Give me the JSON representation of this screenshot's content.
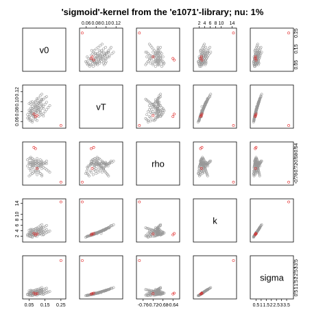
{
  "chart_data": {
    "type": "scatter",
    "subtype": "scatterplot-matrix",
    "title": "'sigmoid'-kernel from the 'e1071'-library; nu: 1%",
    "variables": [
      {
        "name": "v0",
        "range": [
          0.02,
          0.27
        ],
        "ticks": [
          0.05,
          0.15,
          0.25
        ],
        "tick_labels": [
          "0.05",
          "0.15",
          "0.25"
        ]
      },
      {
        "name": "vT",
        "range": [
          0.05,
          0.13
        ],
        "ticks": [
          0.06,
          0.08,
          0.1,
          0.12
        ],
        "tick_labels": [
          "0.06",
          "0.08",
          "0.10",
          "0.12"
        ]
      },
      {
        "name": "rho",
        "range": [
          -0.78,
          -0.62
        ],
        "ticks": [
          -0.76,
          -0.72,
          -0.68,
          -0.64
        ],
        "tick_labels": [
          "-0.76",
          "-0.72",
          "-0.68",
          "-0.64"
        ]
      },
      {
        "name": "k",
        "range": [
          0.5,
          15.0
        ],
        "ticks": [
          2,
          4,
          6,
          8,
          10,
          14
        ],
        "tick_labels": [
          "2",
          "4",
          "6",
          "8",
          "10",
          "14"
        ]
      },
      {
        "name": "sigma",
        "range": [
          0.1,
          4.0
        ],
        "ticks": [
          0.5,
          1.0,
          1.5,
          2.0,
          2.5,
          3.0,
          3.5
        ],
        "tick_labels": [
          "0.5",
          "1",
          "1.5",
          "2",
          "2.5",
          "3",
          "3.5"
        ]
      }
    ],
    "axes_placement": {
      "top": [
        "vT",
        "k"
      ],
      "bottom": [
        "v0",
        "rho",
        "sigma"
      ],
      "left": [
        "vT",
        "k"
      ],
      "right": [
        "v0",
        "rho",
        "sigma"
      ]
    },
    "series": [
      {
        "name": "",
        "color": "#999999",
        "marker": "open-circle",
        "points": [
          [
            0.05,
            0.07,
            -0.7,
            2.8,
            0.4
          ],
          [
            0.06,
            0.08,
            -0.705,
            3.1,
            0.45
          ],
          [
            0.07,
            0.075,
            -0.695,
            2.6,
            0.38
          ],
          [
            0.08,
            0.085,
            -0.71,
            3.4,
            0.5
          ],
          [
            0.09,
            0.09,
            -0.7,
            3.0,
            0.55
          ],
          [
            0.1,
            0.082,
            -0.69,
            2.9,
            0.48
          ],
          [
            0.11,
            0.088,
            -0.715,
            3.6,
            0.6
          ],
          [
            0.12,
            0.078,
            -0.705,
            3.2,
            0.52
          ],
          [
            0.13,
            0.092,
            -0.695,
            3.8,
            0.65
          ],
          [
            0.14,
            0.086,
            -0.7,
            3.5,
            0.58
          ],
          [
            0.06,
            0.095,
            -0.72,
            4.2,
            0.7
          ],
          [
            0.07,
            0.1,
            -0.71,
            4.5,
            0.75
          ],
          [
            0.08,
            0.072,
            -0.69,
            2.4,
            0.35
          ],
          [
            0.09,
            0.068,
            -0.73,
            2.2,
            0.33
          ],
          [
            0.1,
            0.076,
            -0.725,
            2.7,
            0.42
          ],
          [
            0.11,
            0.084,
            -0.735,
            3.3,
            0.5
          ],
          [
            0.12,
            0.08,
            -0.74,
            3.1,
            0.46
          ],
          [
            0.13,
            0.074,
            -0.745,
            2.5,
            0.4
          ],
          [
            0.05,
            0.066,
            -0.75,
            2.1,
            0.3
          ],
          [
            0.06,
            0.064,
            -0.745,
            2.0,
            0.28
          ],
          [
            0.07,
            0.062,
            -0.74,
            1.9,
            0.27
          ],
          [
            0.08,
            0.07,
            -0.735,
            2.3,
            0.34
          ],
          [
            0.09,
            0.078,
            -0.73,
            2.8,
            0.44
          ],
          [
            0.1,
            0.09,
            -0.72,
            3.7,
            0.62
          ],
          [
            0.11,
            0.096,
            -0.715,
            4.1,
            0.68
          ],
          [
            0.12,
            0.098,
            -0.71,
            4.4,
            0.72
          ],
          [
            0.13,
            0.102,
            -0.705,
            4.9,
            0.8
          ],
          [
            0.14,
            0.105,
            -0.7,
            5.2,
            0.85
          ],
          [
            0.15,
            0.108,
            -0.695,
            5.5,
            0.92
          ],
          [
            0.16,
            0.11,
            -0.69,
            5.9,
            0.98
          ],
          [
            0.04,
            0.074,
            -0.685,
            2.6,
            0.4
          ],
          [
            0.05,
            0.078,
            -0.68,
            2.9,
            0.45
          ],
          [
            0.06,
            0.082,
            -0.675,
            3.2,
            0.5
          ],
          [
            0.07,
            0.086,
            -0.68,
            3.5,
            0.56
          ],
          [
            0.08,
            0.088,
            -0.685,
            3.7,
            0.6
          ],
          [
            0.09,
            0.092,
            -0.69,
            4.0,
            0.66
          ],
          [
            0.1,
            0.094,
            -0.695,
            4.3,
            0.7
          ],
          [
            0.11,
            0.098,
            -0.7,
            4.6,
            0.76
          ],
          [
            0.12,
            0.1,
            -0.705,
            4.8,
            0.8
          ],
          [
            0.13,
            0.104,
            -0.71,
            5.1,
            0.86
          ],
          [
            0.14,
            0.076,
            -0.715,
            2.7,
            0.42
          ],
          [
            0.15,
            0.08,
            -0.72,
            3.0,
            0.48
          ],
          [
            0.16,
            0.084,
            -0.725,
            3.3,
            0.54
          ],
          [
            0.17,
            0.088,
            -0.73,
            3.6,
            0.6
          ],
          [
            0.18,
            0.092,
            -0.735,
            3.9,
            0.66
          ],
          [
            0.05,
            0.096,
            -0.7,
            4.2,
            0.72
          ],
          [
            0.06,
            0.099,
            -0.695,
            4.5,
            0.78
          ],
          [
            0.07,
            0.072,
            -0.7,
            2.5,
            0.38
          ],
          [
            0.08,
            0.068,
            -0.705,
            2.3,
            0.35
          ],
          [
            0.09,
            0.064,
            -0.71,
            2.1,
            0.32
          ],
          [
            0.1,
            0.062,
            -0.715,
            2.0,
            0.3
          ],
          [
            0.11,
            0.07,
            -0.69,
            2.6,
            0.41
          ],
          [
            0.12,
            0.073,
            -0.685,
            2.8,
            0.44
          ],
          [
            0.06,
            0.077,
            -0.68,
            3.0,
            0.47
          ],
          [
            0.07,
            0.081,
            -0.69,
            3.3,
            0.52
          ],
          [
            0.08,
            0.085,
            -0.7,
            3.6,
            0.57
          ],
          [
            0.09,
            0.089,
            -0.71,
            3.9,
            0.63
          ],
          [
            0.1,
            0.093,
            -0.72,
            4.2,
            0.68
          ],
          [
            0.11,
            0.097,
            -0.73,
            4.5,
            0.74
          ],
          [
            0.12,
            0.101,
            -0.74,
            4.8,
            0.79
          ],
          [
            0.13,
            0.105,
            -0.75,
            5.1,
            0.85
          ],
          [
            0.05,
            0.083,
            -0.695,
            3.4,
            0.55
          ],
          [
            0.06,
            0.087,
            -0.705,
            3.7,
            0.61
          ],
          [
            0.07,
            0.091,
            -0.715,
            4.0,
            0.67
          ],
          [
            0.08,
            0.095,
            -0.725,
            4.3,
            0.73
          ],
          [
            0.09,
            0.099,
            -0.735,
            4.6,
            0.79
          ],
          [
            0.1,
            0.103,
            -0.745,
            4.9,
            0.84
          ],
          [
            0.11,
            0.107,
            -0.7,
            5.3,
            0.9
          ],
          [
            0.12,
            0.112,
            -0.695,
            5.8,
            0.97
          ],
          [
            0.13,
            0.115,
            -0.69,
            6.2,
            1.05
          ],
          [
            0.14,
            0.071,
            -0.7,
            2.5,
            0.39
          ],
          [
            0.04,
            0.067,
            -0.71,
            2.2,
            0.34
          ],
          [
            0.05,
            0.063,
            -0.72,
            2.0,
            0.31
          ],
          [
            0.06,
            0.061,
            -0.73,
            1.8,
            0.28
          ],
          [
            0.07,
            0.059,
            -0.74,
            1.6,
            0.25
          ],
          [
            0.08,
            0.074,
            -0.7,
            2.7,
            0.43
          ],
          [
            0.09,
            0.079,
            -0.69,
            3.0,
            0.49
          ],
          [
            0.1,
            0.083,
            -0.68,
            3.3,
            0.53
          ],
          [
            0.11,
            0.087,
            -0.7,
            3.6,
            0.59
          ],
          [
            0.12,
            0.091,
            -0.71,
            3.9,
            0.65
          ],
          [
            0.13,
            0.095,
            -0.72,
            4.2,
            0.71
          ],
          [
            0.06,
            0.079,
            -0.7,
            3.0,
            0.47
          ],
          [
            0.07,
            0.082,
            -0.705,
            3.2,
            0.51
          ],
          [
            0.08,
            0.076,
            -0.695,
            2.8,
            0.44
          ],
          [
            0.09,
            0.081,
            -0.7,
            3.1,
            0.49
          ],
          [
            0.1,
            0.085,
            -0.705,
            3.4,
            0.55
          ],
          [
            0.11,
            0.089,
            -0.71,
            3.7,
            0.61
          ],
          [
            0.05,
            0.069,
            -0.7,
            2.4,
            0.37
          ],
          [
            0.06,
            0.073,
            -0.705,
            2.6,
            0.41
          ],
          [
            0.07,
            0.077,
            -0.71,
            2.9,
            0.46
          ],
          [
            0.08,
            0.097,
            -0.7,
            4.4,
            0.74
          ],
          [
            0.09,
            0.101,
            -0.7,
            4.7,
            0.8
          ],
          [
            0.1,
            0.106,
            -0.7,
            5.0,
            0.86
          ],
          [
            0.11,
            0.079,
            -0.7,
            2.9,
            0.45
          ],
          [
            0.12,
            0.083,
            -0.7,
            3.2,
            0.5
          ],
          [
            0.13,
            0.087,
            -0.7,
            3.5,
            0.56
          ],
          [
            0.14,
            0.091,
            -0.7,
            3.8,
            0.62
          ],
          [
            0.15,
            0.095,
            -0.7,
            4.1,
            0.68
          ],
          [
            0.16,
            0.099,
            -0.7,
            4.4,
            0.74
          ]
        ]
      },
      {
        "name": "",
        "color": "#e02020",
        "marker": "open-circle",
        "points": [
          [
            0.25,
            0.052,
            -0.775,
            14.5,
            3.7
          ],
          [
            0.08,
            0.075,
            -0.635,
            3.0,
            0.5
          ],
          [
            0.09,
            0.07,
            -0.64,
            2.5,
            0.42
          ],
          [
            0.1,
            0.072,
            -0.72,
            2.8,
            0.45
          ]
        ]
      }
    ]
  }
}
